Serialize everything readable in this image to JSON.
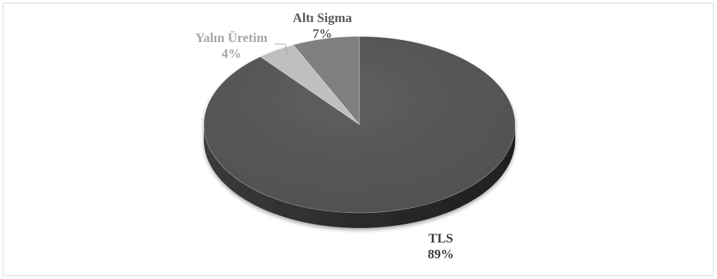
{
  "chart_data": {
    "type": "pie",
    "style": "3d",
    "title": "",
    "slices": [
      {
        "name": "Altı Sigma",
        "value": 7,
        "label": "7%",
        "color": "#7f7f7f",
        "label_color": "#595959"
      },
      {
        "name": "Yalın Üretim",
        "value": 4,
        "label": "4%",
        "color": "#bfbfbf",
        "label_color": "#a6a6a6"
      },
      {
        "name": "TLS",
        "value": 89,
        "label": "89%",
        "color": "#595959",
        "label_color": "#404040"
      }
    ],
    "legend": "none",
    "data_labels": "outside"
  }
}
